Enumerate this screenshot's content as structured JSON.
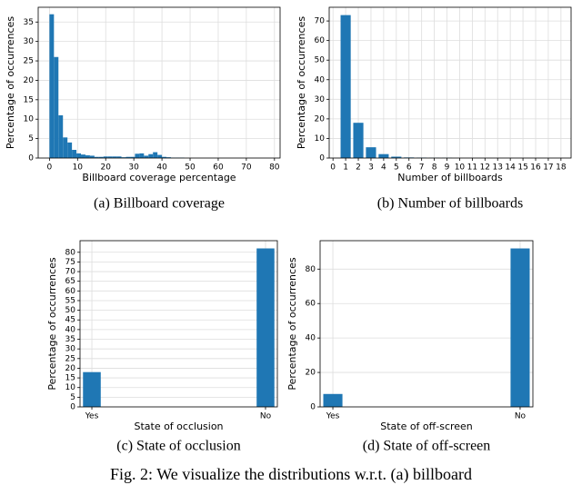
{
  "chart_data": [
    {
      "type": "histogram",
      "caption": "(a) Billboard coverage",
      "xlabel": "Billboard coverage percentage",
      "ylabel": "Percentage of occurrences",
      "color": "#1f77b4",
      "grid": true,
      "bins": [
        0,
        1.6,
        3.2,
        4.8,
        6.4,
        8,
        9.6,
        11.2,
        12.8,
        14.4,
        16,
        17.6,
        19.2,
        20.8,
        22.4,
        24,
        25.6,
        27.2,
        28.8,
        30.4,
        32,
        33.6,
        35.2,
        36.8,
        38.4,
        40,
        41.6,
        43.2,
        44.8,
        46.4,
        48,
        49.6,
        51.2,
        52.8,
        54.4,
        56,
        57.6,
        59.2,
        60.8,
        62.4,
        64,
        65.6,
        67.2,
        68.8,
        70.4,
        72,
        73.6,
        75.2,
        76.8,
        78.4,
        80
      ],
      "values": [
        37,
        26,
        11,
        5.3,
        4,
        2.1,
        1.2,
        0.9,
        0.7,
        0.6,
        0.3,
        0.3,
        0.4,
        0.4,
        0.4,
        0.4,
        0.2,
        0.3,
        0.3,
        1.1,
        1.2,
        0.6,
        1.0,
        1.5,
        0.8,
        0.3,
        0.2,
        0.1,
        0.1,
        0.1,
        0,
        0,
        0,
        0,
        0,
        0,
        0,
        0,
        0,
        0,
        0,
        0,
        0,
        0,
        0,
        0,
        0,
        0,
        0,
        0
      ],
      "xlim": [
        -4,
        82
      ],
      "xticks": [
        0,
        10,
        20,
        30,
        40,
        50,
        60,
        70,
        80
      ],
      "ylim": [
        0,
        38.8
      ],
      "yticks": [
        0,
        5,
        10,
        15,
        20,
        25,
        30,
        35
      ]
    },
    {
      "type": "bar",
      "caption": "(b) Number of billboards",
      "xlabel": "Number of billboards",
      "ylabel": "Percentage of occurrences",
      "color": "#1f77b4",
      "grid": true,
      "x": [
        1,
        2,
        3,
        4,
        5,
        6,
        7,
        8,
        9,
        10,
        11,
        12,
        13,
        14,
        15,
        16,
        17,
        18
      ],
      "values": [
        73,
        18,
        5.5,
        2,
        0.7,
        0.3,
        0.2,
        0.1,
        0.1,
        0,
        0,
        0,
        0,
        0,
        0,
        0,
        0,
        0
      ],
      "xlim": [
        -0.3,
        18.8
      ],
      "xticks": [
        0,
        1,
        2,
        3,
        4,
        5,
        6,
        7,
        8,
        9,
        10,
        11,
        12,
        13,
        14,
        15,
        16,
        17,
        18
      ],
      "ylim": [
        0,
        77
      ],
      "yticks": [
        0,
        10,
        20,
        30,
        40,
        50,
        60,
        70
      ]
    },
    {
      "type": "bar",
      "caption": "(c) State of occlusion",
      "xlabel": "State of occlusion",
      "ylabel": "Percentage of occurrences",
      "color": "#1f77b4",
      "grid": true,
      "categories": [
        "Yes",
        "No"
      ],
      "values": [
        18,
        82
      ],
      "ylim": [
        0,
        86
      ],
      "yticks": [
        0,
        5,
        10,
        15,
        20,
        25,
        30,
        35,
        40,
        45,
        50,
        55,
        60,
        65,
        70,
        75,
        80
      ]
    },
    {
      "type": "bar",
      "caption": "(d) State of off-screen",
      "xlabel": "State of off-screen",
      "ylabel": "Percentage of occurrences",
      "color": "#1f77b4",
      "grid": true,
      "categories": [
        "Yes",
        "No"
      ],
      "values": [
        7.5,
        92
      ],
      "ylim": [
        0,
        96.5
      ],
      "yticks": [
        0,
        20,
        40,
        60,
        80
      ]
    }
  ],
  "figure_caption": "Fig. 2: We visualize the distributions w.r.t. (a) billboard"
}
